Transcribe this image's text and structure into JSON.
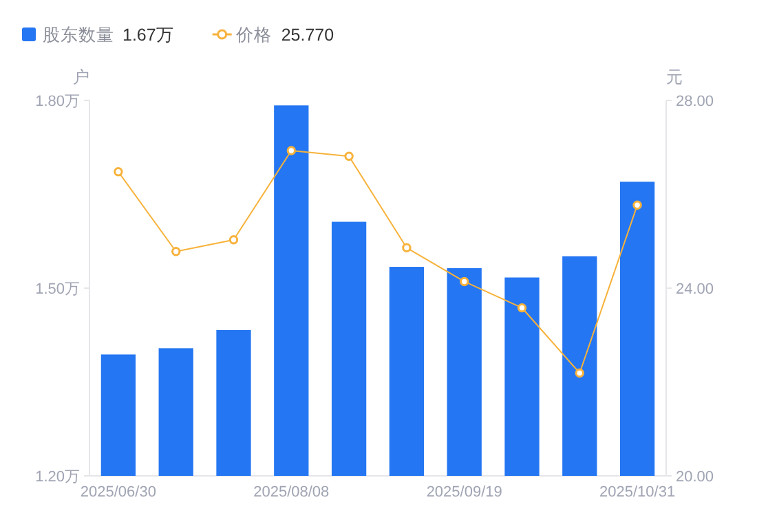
{
  "chart_data": {
    "type": "bar",
    "categories": [
      "2025/06/30",
      null,
      null,
      "2025/08/08",
      null,
      null,
      "2025/09/19",
      null,
      null,
      "2025/10/31"
    ],
    "series": [
      {
        "name": "股东数量",
        "color": "#2476f2",
        "values": [
          1.394,
          1.404,
          1.433,
          1.792,
          1.606,
          1.534,
          1.532,
          1.517,
          1.551,
          1.67
        ]
      },
      {
        "name": "价格",
        "type": "line",
        "axis": "y2",
        "color": "#f7b23b",
        "marker": "circle",
        "values": [
          26.48,
          24.78,
          25.03,
          26.93,
          26.81,
          24.86,
          24.14,
          23.58,
          22.19,
          25.77
        ]
      }
    ],
    "annotations": [
      "1.67万",
      "25.770"
    ],
    "ylabel": "户",
    "y2label": "元",
    "ylim": [
      1.2,
      1.8
    ],
    "yticks": [
      {
        "value": 1.2,
        "label": "1.20万"
      },
      {
        "value": 1.5,
        "label": "1.50万"
      },
      {
        "value": 1.8,
        "label": "1.80万"
      }
    ],
    "y2lim": [
      20,
      28
    ],
    "y2ticks": [
      {
        "value": 20,
        "label": "20.00"
      },
      {
        "value": 24,
        "label": "24.00"
      },
      {
        "value": 28,
        "label": "28.00"
      }
    ],
    "grid": false,
    "legend": "top left"
  }
}
